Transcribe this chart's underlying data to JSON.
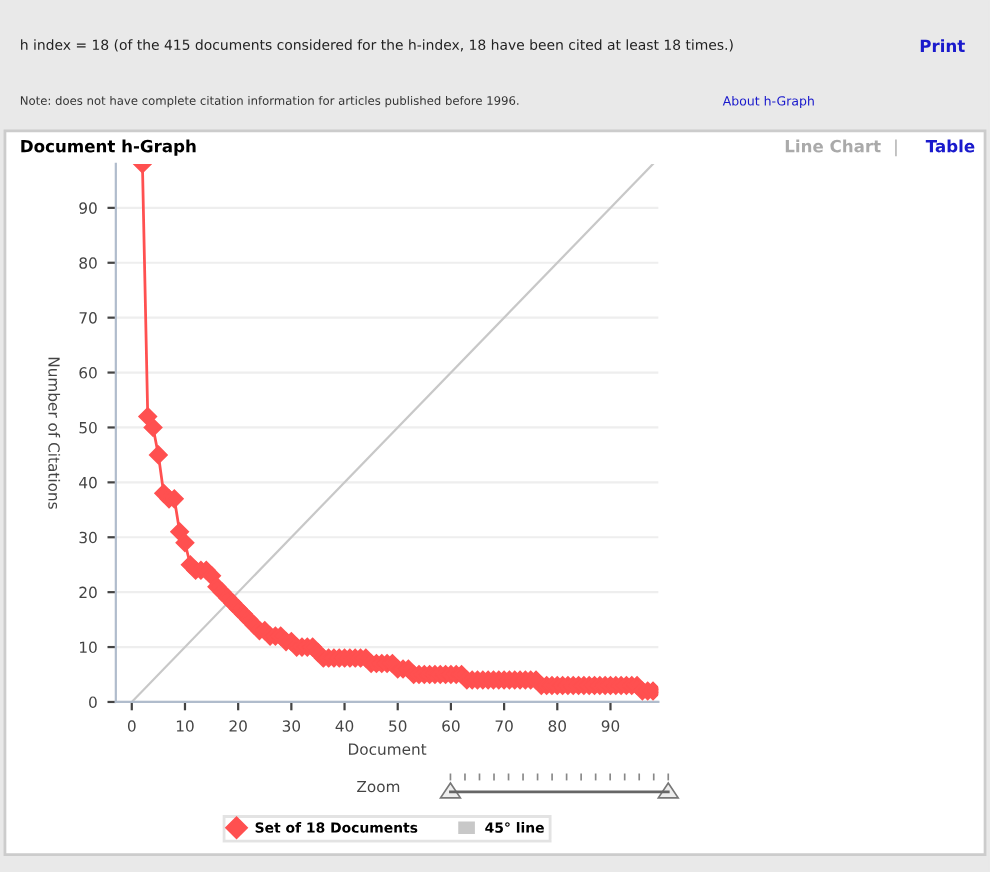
{
  "chart_data": {
    "type": "line",
    "title": "Document h-Graph",
    "xlabel": "Document",
    "ylabel": "Number of Citations",
    "annotations": [
      "h index = 18 (of the 415 documents considered for the h-index, 18 have been cited at least 18 times.)",
      "Print",
      "Note: does not have complete citation information for articles published before 1996.",
      "About h-Graph",
      "Line Chart",
      "|",
      "Table",
      "Zoom"
    ],
    "xlim": [
      -3,
      99
    ],
    "ylim": [
      0,
      98
    ],
    "xticks": [
      0,
      10,
      20,
      30,
      40,
      50,
      60,
      70,
      80,
      90
    ],
    "yticks": [
      0,
      10,
      20,
      30,
      40,
      50,
      60,
      70,
      80,
      90
    ],
    "grid": "y",
    "legend": "bottom",
    "marker": "diamond",
    "line_style": "solid",
    "series": [
      {
        "name": "Set of 18 Documents",
        "color": "#ff5050",
        "x": [
          2,
          3,
          4,
          5,
          6,
          7,
          8,
          9,
          10,
          11,
          12,
          13,
          14,
          15,
          16,
          17,
          18,
          19,
          20,
          21,
          22,
          23,
          24,
          25,
          26,
          27,
          28,
          29,
          30,
          31,
          32,
          33,
          34,
          35,
          36,
          37,
          38,
          39,
          40,
          41,
          42,
          43,
          44,
          45,
          46,
          47,
          48,
          49,
          50,
          51,
          52,
          53,
          54,
          55,
          56,
          57,
          58,
          59,
          60,
          61,
          62,
          63,
          64,
          65,
          66,
          67,
          68,
          69,
          70,
          71,
          72,
          73,
          74,
          75,
          76,
          77,
          78,
          79,
          80,
          81,
          82,
          83,
          84,
          85,
          86,
          87,
          88,
          89,
          90,
          91,
          92,
          93,
          94,
          95,
          96,
          97,
          98
        ],
        "values": [
          98,
          52,
          50,
          45,
          38,
          37,
          37,
          31,
          29,
          25,
          24,
          24,
          24,
          23,
          21,
          20,
          19,
          18,
          17,
          16,
          15,
          14,
          13,
          13,
          12,
          12,
          12,
          11,
          11,
          10,
          10,
          10,
          10,
          9,
          8,
          8,
          8,
          8,
          8,
          8,
          8,
          8,
          8,
          7,
          7,
          7,
          7,
          7,
          6,
          6,
          6,
          5,
          5,
          5,
          5,
          5,
          5,
          5,
          5,
          5,
          5,
          4,
          4,
          4,
          4,
          4,
          4,
          4,
          4,
          4,
          4,
          4,
          4,
          4,
          4,
          3,
          3,
          3,
          3,
          3,
          3,
          3,
          3,
          3,
          3,
          3,
          3,
          3,
          3,
          3,
          3,
          3,
          3,
          3,
          2,
          2,
          2
        ]
      },
      {
        "name": "45° line",
        "color": "#c8c8c8",
        "type": "line",
        "marker": "none",
        "x": [
          0,
          98
        ],
        "values": [
          0,
          98
        ]
      }
    ]
  }
}
